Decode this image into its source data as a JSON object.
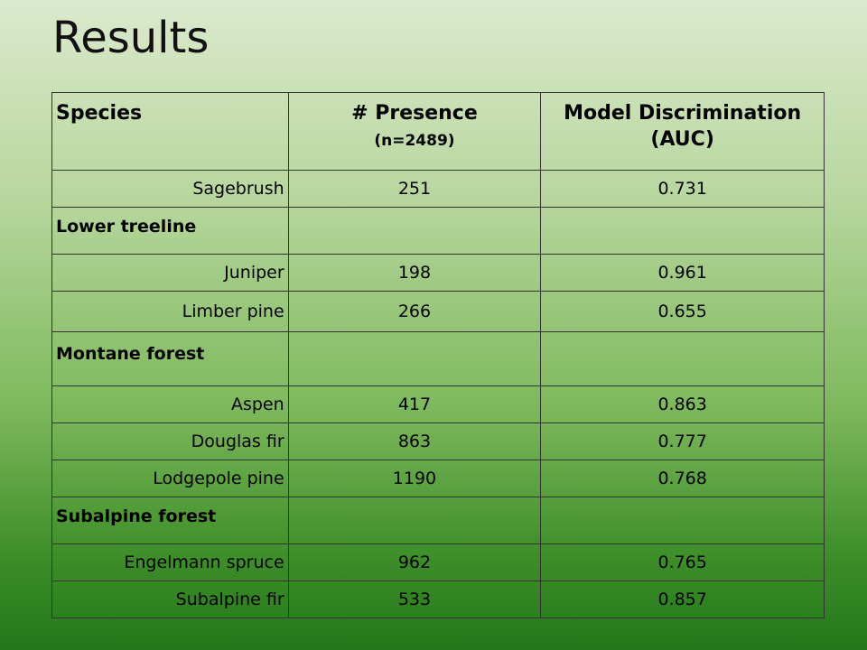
{
  "title": "Results",
  "table": {
    "headers": {
      "species": "Species",
      "presence": "# Presence",
      "presence_sub": "(n=2489)",
      "auc_line1": "Model Discrimination",
      "auc_line2": "(AUC)"
    },
    "rows": [
      {
        "species": "Sagebrush",
        "presence": "251",
        "auc": "0.731"
      },
      {
        "group": "Lower treeline"
      },
      {
        "species": "Juniper",
        "presence": "198",
        "auc": "0.961"
      },
      {
        "species": "Limber pine",
        "presence": "266",
        "auc": "0.655"
      },
      {
        "group": "Montane forest"
      },
      {
        "species": "Aspen",
        "presence": "417",
        "auc": "0.863"
      },
      {
        "species": "Douglas fir",
        "presence": "863",
        "auc": "0.777"
      },
      {
        "species": "Lodgepole pine",
        "presence": "1190",
        "auc": "0.768"
      },
      {
        "group": "Subalpine forest"
      },
      {
        "species": "Engelmann spruce",
        "presence": "962",
        "auc": "0.765"
      },
      {
        "species": "Subalpine fir",
        "presence": "533",
        "auc": "0.857"
      }
    ]
  }
}
